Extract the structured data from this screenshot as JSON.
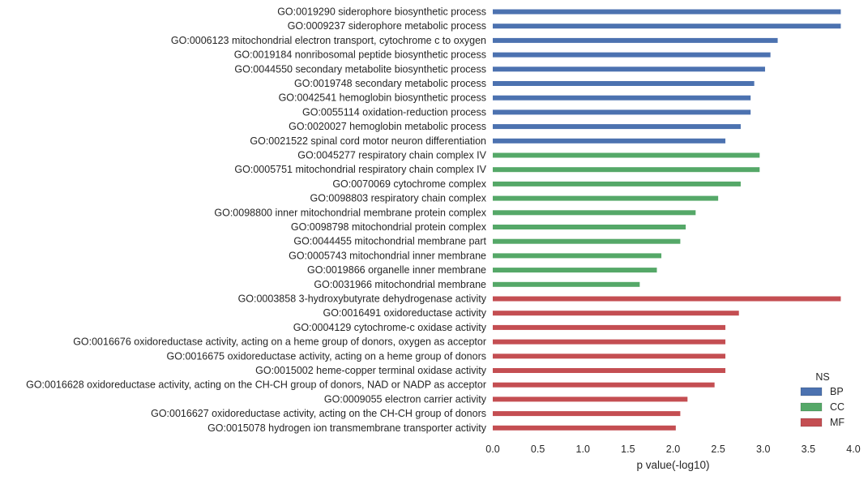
{
  "chart_data": {
    "type": "bar",
    "orientation": "horizontal",
    "xlabel": "p value(-log10)",
    "ylabel": "",
    "xlim": [
      0,
      4
    ],
    "xticks": [
      "0.0",
      "0.5",
      "1.0",
      "1.5",
      "2.0",
      "2.5",
      "3.0",
      "3.5",
      "4.0"
    ],
    "grid": false,
    "legend": {
      "title": "NS",
      "position": "bottom-right"
    },
    "series": [
      {
        "name": "BP",
        "color": "#4c72b0"
      },
      {
        "name": "CC",
        "color": "#55a868"
      },
      {
        "name": "MF",
        "color": "#c44e52"
      }
    ],
    "bars": [
      {
        "label": "GO:0019290 siderophore biosynthetic process",
        "ns": "BP",
        "value": 3.86
      },
      {
        "label": "GO:0009237 siderophore metabolic process",
        "ns": "BP",
        "value": 3.86
      },
      {
        "label": "GO:0006123 mitochondrial electron transport, cytochrome c to oxygen",
        "ns": "BP",
        "value": 3.16
      },
      {
        "label": "GO:0019184 nonribosomal peptide biosynthetic process",
        "ns": "BP",
        "value": 3.08
      },
      {
        "label": "GO:0044550 secondary metabolite biosynthetic process",
        "ns": "BP",
        "value": 3.02
      },
      {
        "label": "GO:0019748 secondary metabolic process",
        "ns": "BP",
        "value": 2.9
      },
      {
        "label": "GO:0042541 hemoglobin biosynthetic process",
        "ns": "BP",
        "value": 2.86
      },
      {
        "label": "GO:0055114 oxidation-reduction process",
        "ns": "BP",
        "value": 2.86
      },
      {
        "label": "GO:0020027 hemoglobin metabolic process",
        "ns": "BP",
        "value": 2.75
      },
      {
        "label": "GO:0021522 spinal cord motor neuron differentiation",
        "ns": "BP",
        "value": 2.58
      },
      {
        "label": "GO:0045277 respiratory chain complex IV",
        "ns": "CC",
        "value": 2.96
      },
      {
        "label": "GO:0005751 mitochondrial respiratory chain complex IV",
        "ns": "CC",
        "value": 2.96
      },
      {
        "label": "GO:0070069 cytochrome complex",
        "ns": "CC",
        "value": 2.75
      },
      {
        "label": "GO:0098803 respiratory chain complex",
        "ns": "CC",
        "value": 2.5
      },
      {
        "label": "GO:0098800 inner mitochondrial membrane protein complex",
        "ns": "CC",
        "value": 2.25
      },
      {
        "label": "GO:0098798 mitochondrial protein complex",
        "ns": "CC",
        "value": 2.14
      },
      {
        "label": "GO:0044455 mitochondrial membrane part",
        "ns": "CC",
        "value": 2.08
      },
      {
        "label": "GO:0005743 mitochondrial inner membrane",
        "ns": "CC",
        "value": 1.87
      },
      {
        "label": "GO:0019866 organelle inner membrane",
        "ns": "CC",
        "value": 1.82
      },
      {
        "label": "GO:0031966 mitochondrial membrane",
        "ns": "CC",
        "value": 1.63
      },
      {
        "label": "GO:0003858 3-hydroxybutyrate dehydrogenase activity",
        "ns": "MF",
        "value": 3.86
      },
      {
        "label": "GO:0016491 oxidoreductase activity",
        "ns": "MF",
        "value": 2.73
      },
      {
        "label": "GO:0004129 cytochrome-c oxidase activity",
        "ns": "MF",
        "value": 2.58
      },
      {
        "label": "GO:0016676 oxidoreductase activity, acting on a heme group of donors, oxygen as acceptor",
        "ns": "MF",
        "value": 2.58
      },
      {
        "label": "GO:0016675 oxidoreductase activity, acting on a heme group of donors",
        "ns": "MF",
        "value": 2.58
      },
      {
        "label": "GO:0015002 heme-copper terminal oxidase activity",
        "ns": "MF",
        "value": 2.58
      },
      {
        "label": "GO:0016628 oxidoreductase activity, acting on the CH-CH group of donors, NAD or NADP as acceptor",
        "ns": "MF",
        "value": 2.46
      },
      {
        "label": "GO:0009055 electron carrier activity",
        "ns": "MF",
        "value": 2.16
      },
      {
        "label": "GO:0016627 oxidoreductase activity, acting on the CH-CH group of donors",
        "ns": "MF",
        "value": 2.08
      },
      {
        "label": "GO:0015078 hydrogen ion transmembrane transporter activity",
        "ns": "MF",
        "value": 2.03
      }
    ]
  }
}
